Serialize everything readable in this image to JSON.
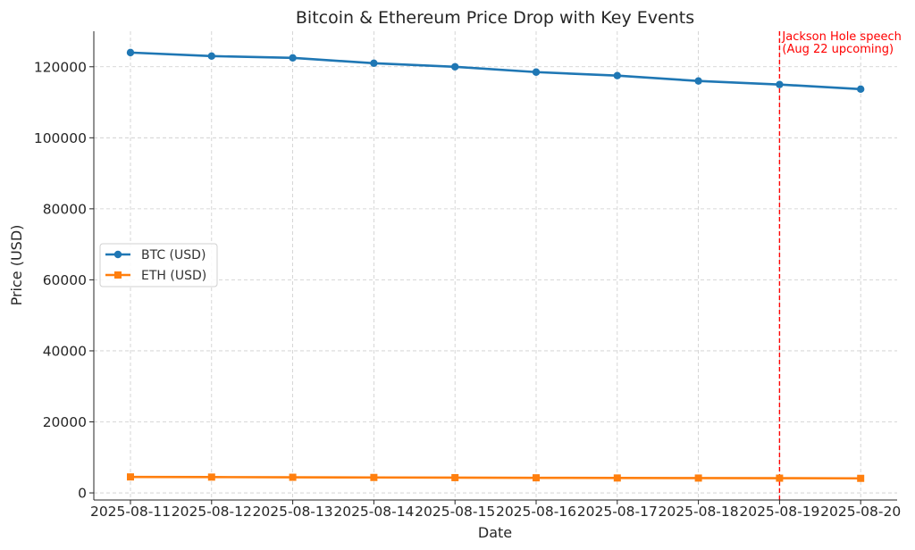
{
  "chart_data": {
    "type": "line",
    "title": "Bitcoin & Ethereum Price Drop with Key Events",
    "xlabel": "Date",
    "ylabel": "Price (USD)",
    "x": [
      "2025-08-11",
      "2025-08-12",
      "2025-08-13",
      "2025-08-14",
      "2025-08-15",
      "2025-08-16",
      "2025-08-17",
      "2025-08-18",
      "2025-08-19",
      "2025-08-20"
    ],
    "ylim": [
      -2000,
      130000
    ],
    "yticks": [
      0,
      20000,
      40000,
      60000,
      80000,
      100000,
      120000
    ],
    "grid": true,
    "legend_position": "center-left",
    "series": [
      {
        "name": "BTC (USD)",
        "color": "#1f77b4",
        "marker": "circle",
        "values": [
          124000,
          123000,
          122500,
          121000,
          120000,
          118500,
          117500,
          116000,
          115000,
          113700
        ]
      },
      {
        "name": "ETH (USD)",
        "color": "#ff7f0e",
        "marker": "square",
        "values": [
          4500,
          4450,
          4400,
          4350,
          4300,
          4250,
          4200,
          4180,
          4150,
          4100
        ]
      }
    ],
    "annotations": [
      {
        "type": "vline",
        "x": "2025-08-19",
        "color": "#ff0000",
        "style": "dashed",
        "text_lines": [
          "Jackson Hole speech",
          "(Aug 22 upcoming)"
        ]
      }
    ]
  }
}
